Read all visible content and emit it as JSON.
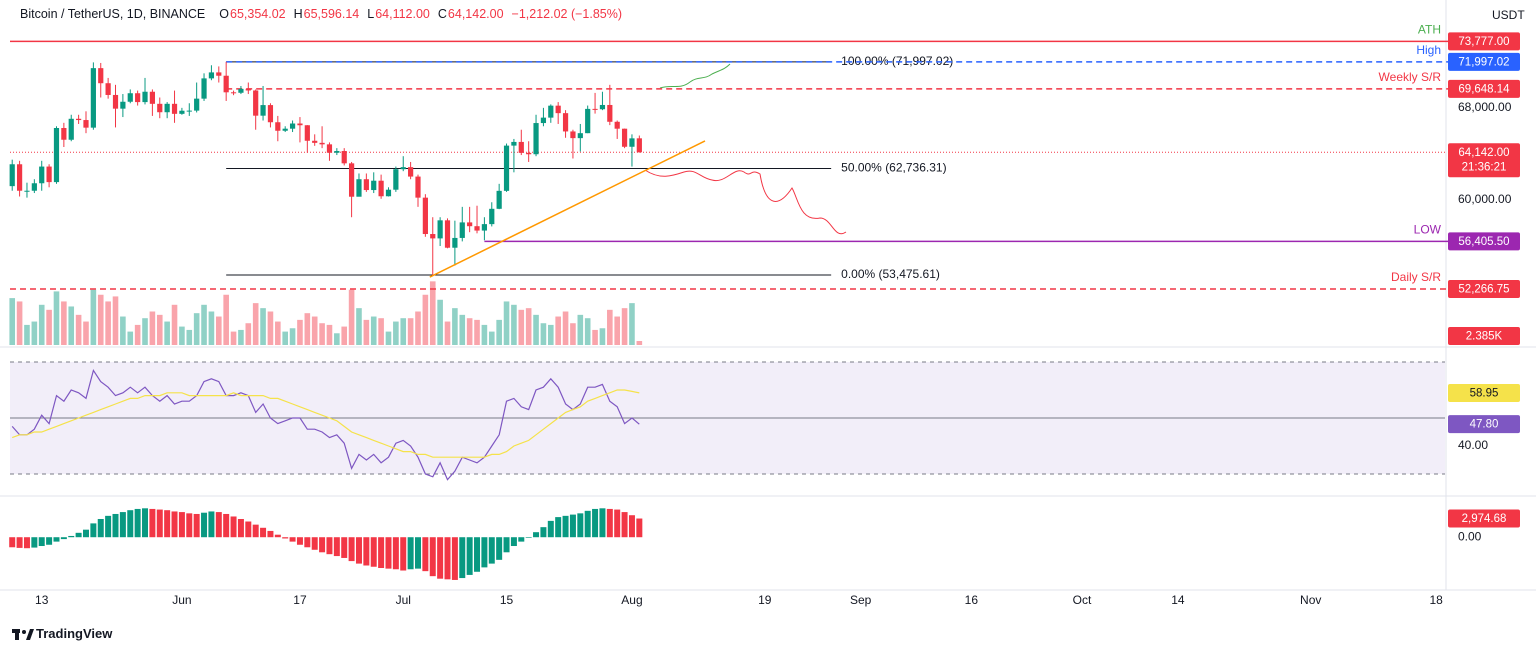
{
  "header": {
    "title": "Bitcoin / TetherUS, 1D, BINANCE",
    "legend": [
      {
        "key": "O",
        "label": "65,354.02"
      },
      {
        "key": "H",
        "label": "65,596.14"
      },
      {
        "key": "L",
        "label": "64,112.00"
      },
      {
        "key": "C",
        "label": "64,142.00"
      }
    ],
    "change": "−1,212.02 (−1.85%)"
  },
  "currency": "USDT",
  "brand": "TradingView",
  "chart_data": [
    {
      "type": "candlestick",
      "up_color": "#089981",
      "down_color": "#f23645",
      "xlim": [
        -0.3,
        194.2
      ],
      "xticks": [
        {
          "value": 4,
          "label": "13"
        },
        {
          "value": 23,
          "label": "Jun"
        },
        {
          "value": 39,
          "label": "17"
        },
        {
          "value": 53,
          "label": "Jul"
        },
        {
          "value": 67,
          "label": "15"
        },
        {
          "value": 84,
          "label": "Aug"
        },
        {
          "value": 102,
          "label": "19"
        },
        {
          "value": 115,
          "label": "Sep"
        },
        {
          "value": 130,
          "label": "16"
        },
        {
          "value": 145,
          "label": "Oct"
        },
        {
          "value": 158,
          "label": "14"
        },
        {
          "value": 176,
          "label": "Nov"
        },
        {
          "value": 193,
          "label": "18"
        }
      ],
      "ylim": [
        47400,
        76500
      ],
      "yticks": [
        {
          "value": 60000,
          "label": "60,000.00"
        },
        {
          "value": 68000,
          "label": "68,000.00"
        }
      ],
      "open": [
        61200,
        63100,
        60800,
        60800,
        61450,
        62900,
        61550,
        66250,
        65230,
        67050,
        66940,
        66280,
        71450,
        70140,
        69120,
        67930,
        68530,
        69270,
        68500,
        69400,
        68350,
        67620,
        68350,
        67480,
        67750,
        67760,
        68800,
        70560,
        71080,
        70790,
        69350,
        69310,
        69650,
        69510,
        67320,
        68240,
        66750,
        66010,
        66190,
        66640,
        66490,
        65140,
        64960,
        64830,
        64100,
        64250,
        63180,
        60280,
        61800,
        60860,
        61670,
        60320,
        60890,
        62670,
        62850,
        62030,
        60200,
        57040,
        56660,
        58230,
        55850,
        56700,
        58050,
        57720,
        57340,
        57900,
        59230,
        60790,
        64720,
        65040,
        64090,
        63970,
        66680,
        67150,
        68190,
        67540,
        65950,
        65370,
        65800,
        67910,
        67880,
        68250,
        66790,
        66190,
        64620,
        65354.02
      ],
      "high": [
        63500,
        63400,
        61500,
        61800,
        63400,
        63100,
        66400,
        66700,
        67400,
        67400,
        67700,
        71950,
        71900,
        70600,
        70000,
        69200,
        69600,
        69500,
        70600,
        69600,
        68900,
        68500,
        69500,
        68000,
        68400,
        70200,
        71000,
        71700,
        71600,
        71997.02,
        69500,
        69900,
        70200,
        69600,
        69900,
        68400,
        67300,
        66400,
        66900,
        67200,
        66500,
        65700,
        66400,
        65000,
        64500,
        64500,
        63300,
        62300,
        62300,
        62400,
        62200,
        61100,
        62900,
        63800,
        63300,
        62200,
        60500,
        58500,
        58500,
        58400,
        58200,
        59400,
        59400,
        59500,
        58500,
        59800,
        61400,
        64900,
        65300,
        66100,
        65100,
        67400,
        68000,
        68300,
        68500,
        67800,
        66100,
        66600,
        68200,
        69300,
        69400,
        70000,
        66900,
        66200,
        65700,
        65596.14
      ],
      "low": [
        60800,
        60300,
        60200,
        60600,
        60800,
        61100,
        61400,
        64600,
        65100,
        66600,
        65800,
        66100,
        68900,
        68800,
        66300,
        67200,
        68400,
        68200,
        68300,
        67300,
        67100,
        67100,
        66700,
        67400,
        67300,
        67600,
        68600,
        70400,
        70200,
        68600,
        69100,
        69200,
        69200,
        66100,
        66900,
        66300,
        65100,
        65900,
        65900,
        65000,
        64100,
        64700,
        64500,
        63400,
        63900,
        63000,
        58500,
        60300,
        60700,
        60600,
        60100,
        60300,
        60700,
        62500,
        61800,
        59400,
        56800,
        53475.61,
        56000,
        55800,
        54300,
        56400,
        57200,
        57100,
        56500,
        57700,
        59200,
        60700,
        62400,
        63900,
        63300,
        63800,
        66400,
        66700,
        66600,
        65400,
        63600,
        64200,
        65800,
        67500,
        67800,
        66500,
        65300,
        64500,
        62900,
        64112
      ],
      "close": [
        63100,
        60800,
        60800,
        61450,
        62900,
        61550,
        66250,
        65230,
        67050,
        66940,
        66280,
        71450,
        70140,
        69120,
        67930,
        68530,
        69270,
        68500,
        69400,
        68350,
        67620,
        68350,
        67480,
        67750,
        67760,
        68800,
        70560,
        71080,
        70790,
        69350,
        69310,
        69650,
        69510,
        67320,
        68240,
        66750,
        66010,
        66190,
        66640,
        66490,
        65140,
        64960,
        64830,
        64100,
        64250,
        63180,
        60280,
        61800,
        60860,
        61670,
        60320,
        60890,
        62670,
        62850,
        62030,
        60200,
        57040,
        56660,
        58230,
        55850,
        56700,
        58050,
        57720,
        57340,
        57900,
        59230,
        60790,
        64720,
        65040,
        64090,
        63970,
        66680,
        67150,
        68190,
        67540,
        65950,
        65370,
        65800,
        67910,
        67880,
        68250,
        66790,
        66190,
        64620,
        65350,
        64142
      ],
      "last_label": "64,142.00",
      "countdown": "21:36:21",
      "volume": [
        28000,
        26000,
        12000,
        14000,
        24000,
        21000,
        32000,
        26000,
        23000,
        18000,
        14000,
        33000,
        30000,
        26000,
        29000,
        17000,
        8000,
        12000,
        16000,
        20000,
        18000,
        14000,
        24000,
        11000,
        9000,
        19000,
        24000,
        20000,
        17000,
        30000,
        8000,
        9000,
        13000,
        25000,
        22000,
        20000,
        14000,
        8000,
        10000,
        15000,
        19000,
        17000,
        13000,
        12000,
        7000,
        11000,
        33000,
        22000,
        15000,
        17000,
        16000,
        8000,
        14000,
        16000,
        16000,
        20000,
        30000,
        38000,
        27000,
        14000,
        22000,
        18000,
        16000,
        15000,
        12000,
        8000,
        15000,
        26000,
        24000,
        21000,
        22000,
        18000,
        13000,
        12000,
        17000,
        20000,
        13000,
        18000,
        16000,
        9000,
        10000,
        21000,
        17000,
        22000,
        25000,
        2385
      ],
      "volume_lim": [
        0,
        200000
      ],
      "volume_last_label": "2.385K",
      "levels": [
        {
          "name": "ATH",
          "value": 73777,
          "label": "73,777.00",
          "color": "#f23645",
          "name_color": "#4caf50",
          "dashed": false
        },
        {
          "name": "High",
          "value": 71997.02,
          "label": "71,997.02",
          "color": "#2962ff",
          "name_color": "#2962ff",
          "dashed": true,
          "from": 29
        },
        {
          "name": "Weekly S/R",
          "value": 69648.14,
          "label": "69,648.14",
          "color": "#f23645",
          "name_color": "#f23645",
          "dashed": true,
          "from": 29
        },
        {
          "name": "LOW",
          "value": 56405.5,
          "label": "56,405.50",
          "color": "#9c27b0",
          "name_color": "#9c27b0",
          "dashed": false,
          "from": 64
        },
        {
          "name": "Daily S/R",
          "value": 52266.75,
          "label": "52,266.75",
          "color": "#f23645",
          "name_color": "#f23645",
          "dashed": true
        }
      ],
      "fib": {
        "from": 29,
        "to": 111,
        "color": "#131722",
        "levels": [
          {
            "value": 71997.02,
            "label": "100.00% (71,997.02)"
          },
          {
            "value": 62736.31,
            "label": "50.00% (62,736.31)"
          },
          {
            "value": 53475.61,
            "label": "0.00% (53,475.61)"
          }
        ]
      },
      "trendline": {
        "color": "#ff9800",
        "x": [
          56.6,
          93.9
        ],
        "values": [
          53300,
          65130
        ]
      }
    },
    {
      "type": "line",
      "ylim": [
        22.5,
        75
      ],
      "yticks": [
        {
          "value": 40,
          "label": "40.00"
        }
      ],
      "band": [
        30,
        70
      ],
      "midline": 50,
      "series": [
        {
          "color": "#7e57c2",
          "text_color": "#ffffff",
          "last_label": "47.80",
          "values": [
            47,
            44,
            44,
            46,
            51,
            48,
            58,
            56,
            60,
            59,
            57,
            67,
            63,
            61,
            58,
            59,
            61,
            59,
            61,
            58,
            56,
            58,
            55,
            56,
            56,
            58,
            63,
            64,
            63,
            58,
            58,
            59,
            58,
            52,
            55,
            50,
            48,
            49,
            50,
            50,
            46,
            46,
            45,
            43,
            44,
            41,
            32,
            37,
            35,
            37,
            34,
            36,
            41,
            42,
            40,
            36,
            30,
            29,
            34,
            28,
            31,
            36,
            35,
            34,
            36,
            40,
            44,
            56,
            57,
            54,
            53,
            60,
            61,
            64,
            61,
            55,
            53,
            55,
            61,
            61,
            62,
            56,
            54,
            48,
            50,
            47.8
          ]
        },
        {
          "color": "#f5e24a",
          "text_color": "#131722",
          "last_label": "58.95",
          "values": [
            43,
            44,
            44,
            45,
            45,
            46,
            47,
            48,
            49,
            50,
            51,
            52,
            53,
            54,
            55,
            56,
            57,
            57,
            58,
            58,
            58,
            59,
            59,
            59,
            58,
            58,
            58,
            58,
            58,
            58,
            59,
            58,
            58,
            58,
            58,
            57,
            57,
            56,
            55,
            54,
            53,
            52,
            51,
            50,
            49,
            47,
            45,
            44,
            43,
            42,
            41,
            40,
            39,
            38,
            38,
            37,
            37,
            36,
            36,
            36,
            36,
            36,
            36,
            36,
            36,
            37,
            37,
            38,
            40,
            41,
            42,
            44,
            46,
            48,
            50,
            52,
            53,
            54,
            56,
            57,
            58,
            59,
            60,
            60,
            59.5,
            58.95
          ]
        }
      ]
    },
    {
      "type": "bar",
      "ylim": [
        -8400,
        6400
      ],
      "yticks": [
        {
          "value": 0,
          "label": "0.00"
        }
      ],
      "rising_color": "#089981",
      "falling_color": "#f23645",
      "last_label": "2,974.68",
      "values": [
        -1600,
        -1700,
        -1750,
        -1650,
        -1400,
        -1200,
        -700,
        -300,
        200,
        700,
        1200,
        2200,
        2900,
        3400,
        3700,
        4000,
        4300,
        4500,
        4600,
        4500,
        4400,
        4300,
        4100,
        4000,
        3800,
        3700,
        3900,
        4100,
        4000,
        3700,
        3300,
        2900,
        2500,
        2000,
        1500,
        1000,
        400,
        -200,
        -700,
        -1200,
        -1600,
        -2000,
        -2400,
        -2700,
        -3000,
        -3300,
        -3800,
        -4200,
        -4500,
        -4700,
        -4900,
        -5000,
        -5100,
        -5300,
        -5100,
        -5000,
        -5400,
        -6200,
        -6600,
        -6700,
        -6800,
        -6500,
        -6000,
        -5500,
        -4800,
        -4200,
        -3600,
        -2400,
        -1400,
        -700,
        -100,
        800,
        1600,
        2600,
        3200,
        3400,
        3600,
        3800,
        4200,
        4500,
        4600,
        4500,
        4400,
        4000,
        3500,
        2974.68
      ]
    }
  ]
}
